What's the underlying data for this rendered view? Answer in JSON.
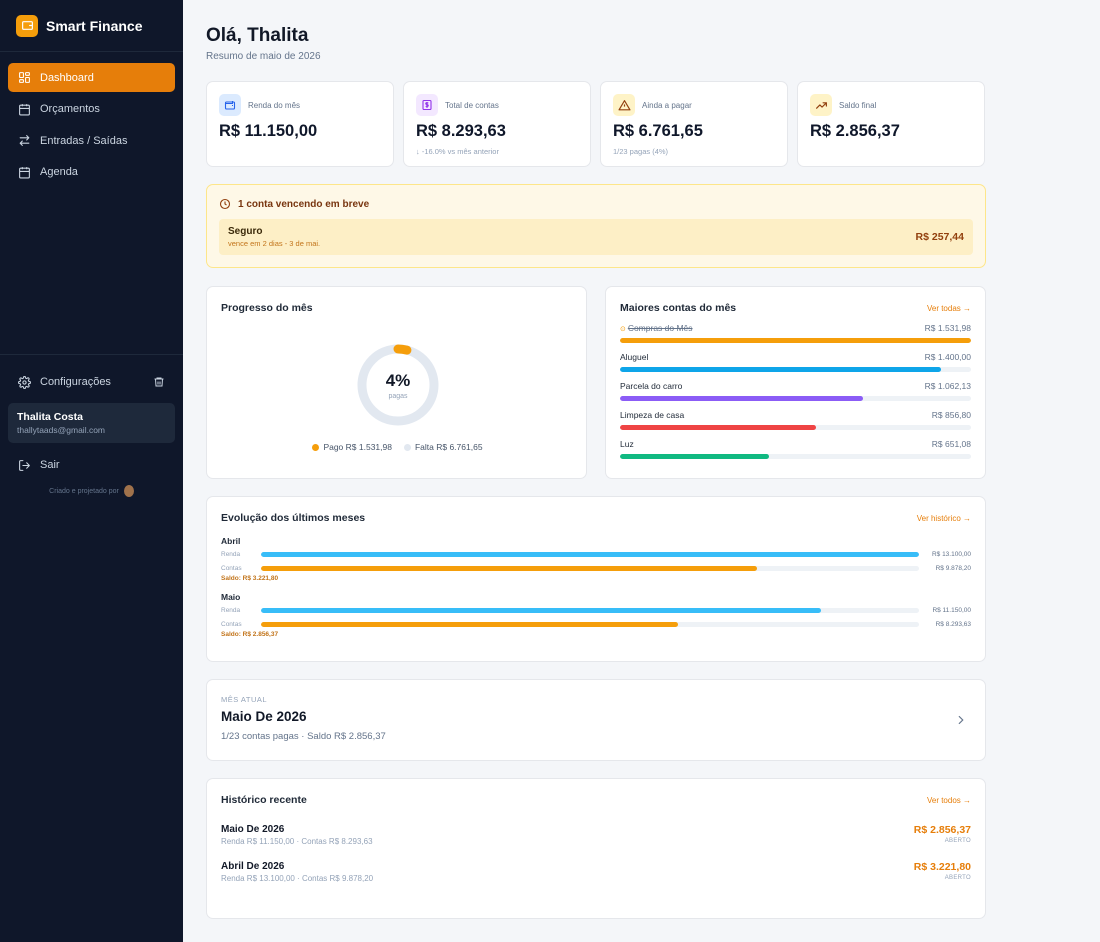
{
  "app": {
    "name": "Smart Finance"
  },
  "sidebar": {
    "items": [
      {
        "label": "Dashboard",
        "icon": "dashboard-icon",
        "active": true
      },
      {
        "label": "Orçamentos",
        "icon": "calendar-icon",
        "active": false
      },
      {
        "label": "Entradas / Saídas",
        "icon": "arrows-icon",
        "active": false
      },
      {
        "label": "Agenda",
        "icon": "calendar-icon",
        "active": false
      }
    ],
    "settings_label": "Configurações",
    "user": {
      "name": "Thalita Costa",
      "email": "thallytaads@gmail.com"
    },
    "logout_label": "Sair",
    "credit_text": "Criado e projetado por"
  },
  "header": {
    "greeting": "Olá, Thalita",
    "subtitle": "Resumo de maio de 2026"
  },
  "stats": [
    {
      "label": "Renda do mês",
      "value": "R$ 11.150,00",
      "note": "",
      "icon": "wallet-icon",
      "color": "#3b82f6",
      "bg": "#dbeafe"
    },
    {
      "label": "Total de contas",
      "value": "R$ 8.293,63",
      "note": "↓ -16.0% vs mês anterior",
      "icon": "dollar-icon",
      "color": "#9333ea",
      "bg": "#f3e8ff"
    },
    {
      "label": "Ainda a pagar",
      "value": "R$ 6.761,65",
      "note": "1/23 pagas (4%)",
      "icon": "warning-icon",
      "color": "#b45309",
      "bg": "#fef3c7"
    },
    {
      "label": "Saldo final",
      "value": "R$ 2.856,37",
      "note": "",
      "icon": "trend-up-icon",
      "color": "#b45309",
      "bg": "#fef3c7"
    }
  ],
  "alert": {
    "title": "1 conta vencendo em breve",
    "item": {
      "name": "Seguro",
      "due": "vence em 2 dias - 3 de mai.",
      "amount": "R$ 257,44"
    }
  },
  "progress": {
    "title": "Progresso do mês",
    "percent": 4,
    "percent_label": "4%",
    "center_label": "pagas",
    "paid_label": "Pago R$ 1.531,98",
    "missing_label": "Falta R$ 6.761,65",
    "paid_color": "#f59e0b",
    "missing_color": "#e2e8f0"
  },
  "bills": {
    "title": "Maiores contas do mês",
    "link": "Ver todas →",
    "items": [
      {
        "name": "Compras do Mês",
        "amount": "R$ 1.531,98",
        "fraction": 1.0,
        "color": "#f59e0b",
        "paid": true
      },
      {
        "name": "Aluguel",
        "amount": "R$ 1.400,00",
        "fraction": 0.914,
        "color": "#0ea5e9",
        "paid": false
      },
      {
        "name": "Parcela do carro",
        "amount": "R$ 1.062,13",
        "fraction": 0.693,
        "color": "#8b5cf6",
        "paid": false
      },
      {
        "name": "Limpeza de casa",
        "amount": "R$ 856,80",
        "fraction": 0.559,
        "color": "#ef4444",
        "paid": false
      },
      {
        "name": "Luz",
        "amount": "R$ 651,08",
        "fraction": 0.425,
        "color": "#10b981",
        "paid": false
      }
    ]
  },
  "evolution": {
    "title": "Evolução dos últimos meses",
    "link": "Ver histórico →",
    "income_label": "Renda",
    "bills_label": "Contas",
    "income_color": "#38bdf8",
    "bills_color": "#f59e0b",
    "months": [
      {
        "name": "Abril",
        "income": "R$ 13.100,00",
        "income_fraction": 1.0,
        "bills": "R$ 9.878,20",
        "bills_fraction": 0.754,
        "saldo": "Saldo: R$ 3.221,80"
      },
      {
        "name": "Maio",
        "income": "R$ 11.150,00",
        "income_fraction": 0.851,
        "bills": "R$ 8.293,63",
        "bills_fraction": 0.633,
        "saldo": "Saldo: R$ 2.856,37"
      }
    ]
  },
  "current": {
    "kicker": "MÊS ATUAL",
    "title": "Maio De 2026",
    "subtitle": "1/23 contas pagas · Saldo R$ 2.856,37"
  },
  "history": {
    "title": "Histórico recente",
    "link": "Ver todos →",
    "items": [
      {
        "title": "Maio De 2026",
        "sub": "Renda R$ 11.150,00 · Contas R$ 8.293,63",
        "amount": "R$ 2.856,37",
        "status": "ABERTO"
      },
      {
        "title": "Abril De 2026",
        "sub": "Renda R$ 13.100,00 · Contas R$ 9.878,20",
        "amount": "R$ 3.221,80",
        "status": "ABERTO"
      }
    ]
  }
}
